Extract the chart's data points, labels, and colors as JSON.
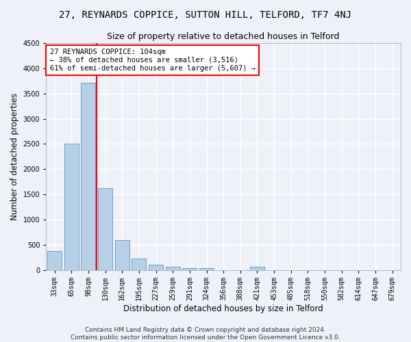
{
  "title": "27, REYNARDS COPPICE, SUTTON HILL, TELFORD, TF7 4NJ",
  "subtitle": "Size of property relative to detached houses in Telford",
  "xlabel": "Distribution of detached houses by size in Telford",
  "ylabel": "Number of detached properties",
  "categories": [
    "33sqm",
    "65sqm",
    "98sqm",
    "130sqm",
    "162sqm",
    "195sqm",
    "227sqm",
    "259sqm",
    "291sqm",
    "324sqm",
    "356sqm",
    "388sqm",
    "421sqm",
    "453sqm",
    "485sqm",
    "518sqm",
    "550sqm",
    "582sqm",
    "614sqm",
    "647sqm",
    "679sqm"
  ],
  "values": [
    370,
    2500,
    3720,
    1630,
    590,
    230,
    105,
    65,
    40,
    35,
    0,
    0,
    60,
    0,
    0,
    0,
    0,
    0,
    0,
    0,
    0
  ],
  "bar_color": "#b8cfe8",
  "bar_edge_color": "#6a9ec9",
  "vline_x": 2,
  "annotation_line1": "27 REYNARDS COPPICE: 104sqm",
  "annotation_line2": "← 38% of detached houses are smaller (3,516)",
  "annotation_line3": "61% of semi-detached houses are larger (5,607) →",
  "annotation_box_color": "white",
  "annotation_box_edge": "red",
  "ylim": [
    0,
    4500
  ],
  "yticks": [
    0,
    500,
    1000,
    1500,
    2000,
    2500,
    3000,
    3500,
    4000,
    4500
  ],
  "footer": "Contains HM Land Registry data © Crown copyright and database right 2024.\nContains public sector information licensed under the Open Government Licence v3.0.",
  "bg_color": "#eef2f8",
  "grid_color": "#ffffff",
  "title_fontsize": 10,
  "subtitle_fontsize": 9,
  "axis_label_fontsize": 8.5,
  "tick_fontsize": 7,
  "footer_fontsize": 6.5,
  "annotation_fontsize": 7.5
}
